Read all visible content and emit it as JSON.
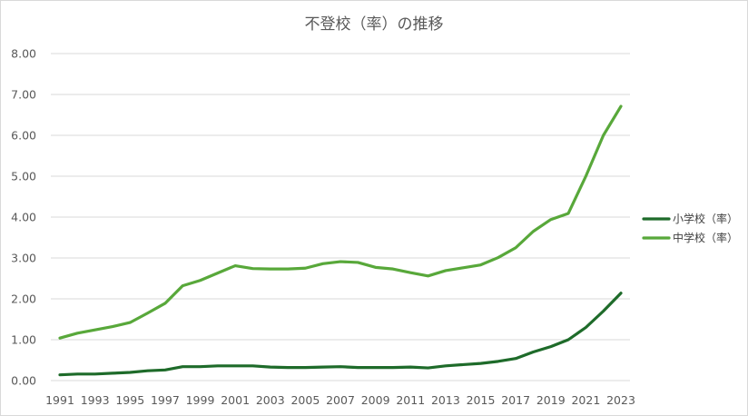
{
  "chart_data": {
    "type": "line",
    "title": "不登校（率）の推移",
    "xlabel": "",
    "ylabel": "",
    "ylim": [
      0,
      8
    ],
    "y_ticks": [
      "0.00",
      "1.00",
      "2.00",
      "3.00",
      "4.00",
      "5.00",
      "6.00",
      "7.00",
      "8.00"
    ],
    "x_tick_labels": [
      "1991",
      "1993",
      "1995",
      "1997",
      "1999",
      "2001",
      "2003",
      "2005",
      "2007",
      "2009",
      "2011",
      "2013",
      "2015",
      "2017",
      "2019",
      "2021",
      "2023"
    ],
    "x": [
      1991,
      1992,
      1993,
      1994,
      1995,
      1996,
      1997,
      1998,
      1999,
      2000,
      2001,
      2002,
      2003,
      2004,
      2005,
      2006,
      2007,
      2008,
      2009,
      2010,
      2011,
      2012,
      2013,
      2014,
      2015,
      2016,
      2017,
      2018,
      2019,
      2020,
      2021,
      2022,
      2023
    ],
    "grid": true,
    "legend_position": "right",
    "series": [
      {
        "name": "小学校（率）",
        "color": "#1e6b2a",
        "values": [
          0.14,
          0.16,
          0.16,
          0.18,
          0.2,
          0.24,
          0.26,
          0.34,
          0.34,
          0.36,
          0.36,
          0.36,
          0.33,
          0.32,
          0.32,
          0.33,
          0.34,
          0.32,
          0.32,
          0.32,
          0.33,
          0.31,
          0.36,
          0.39,
          0.42,
          0.47,
          0.54,
          0.7,
          0.83,
          1.0,
          1.3,
          1.7,
          2.14
        ]
      },
      {
        "name": "中学校（率）",
        "color": "#58a83a",
        "values": [
          1.04,
          1.16,
          1.24,
          1.32,
          1.42,
          1.65,
          1.89,
          2.32,
          2.45,
          2.63,
          2.81,
          2.74,
          2.73,
          2.73,
          2.75,
          2.86,
          2.91,
          2.89,
          2.77,
          2.73,
          2.64,
          2.56,
          2.69,
          2.76,
          2.83,
          3.01,
          3.25,
          3.65,
          3.94,
          4.09,
          5.0,
          6.0,
          6.71
        ]
      }
    ]
  }
}
